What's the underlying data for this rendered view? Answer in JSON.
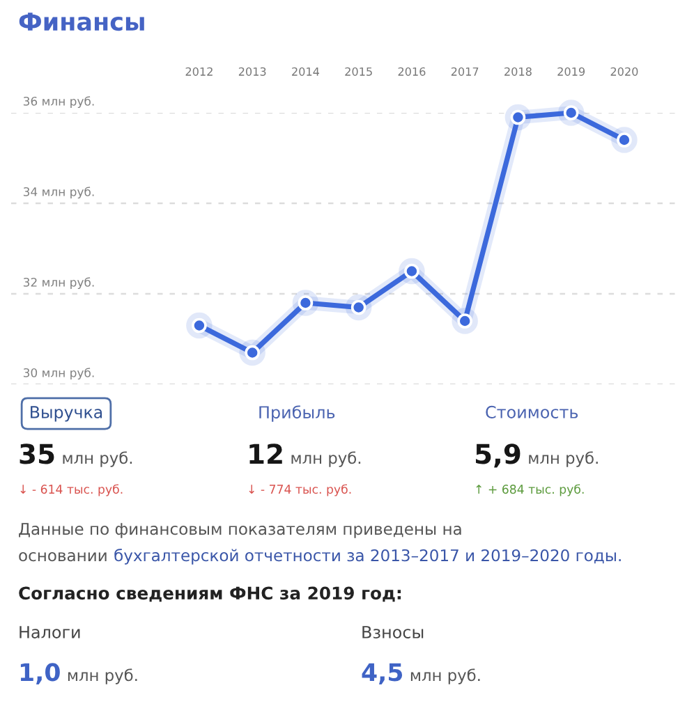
{
  "chart_data": [
    {
      "type": "line",
      "title": "Финансы",
      "categories": [
        "2012",
        "2013",
        "2014",
        "2015",
        "2016",
        "2017",
        "2018",
        "2019",
        "2020"
      ],
      "series": [
        {
          "color": "#3c69dc",
          "values": [
            31.3,
            30.7,
            31.8,
            31.7,
            32.5,
            31.4,
            35.9,
            36.0,
            35.4
          ]
        }
      ],
      "ylim": [
        30,
        36
      ],
      "yticks": [
        {
          "value": 30,
          "label": "30 млн руб."
        },
        {
          "value": 32,
          "label": "32 млн руб."
        },
        {
          "value": 34,
          "label": "34 млн руб."
        },
        {
          "value": 36,
          "label": "36 млн руб."
        }
      ],
      "grid": "y",
      "marker": "circle",
      "line_style": "solid"
    },
    {
      "type": "other",
      "annotations": [
        "Выручка",
        "Прибыль",
        "Стоимость",
        "35",
        "млн руб.",
        "12",
        "млн руб.",
        "5,9",
        "млн руб.",
        "↓ - 614 тыс. руб.",
        "↓ - 774 тыс. руб.",
        "↑ + 684 тыс. руб.",
        "Данные по финансовым показателям приведены на",
        "основании",
        "бухгалтерской отчетности за 2013–2017 и 2019–2020 годы.",
        "Согласно сведениям ФНС за 2019 год:",
        "Налоги",
        "Взносы",
        "1,0",
        "млн руб.",
        "4,5",
        "млн руб."
      ]
    }
  ]
}
